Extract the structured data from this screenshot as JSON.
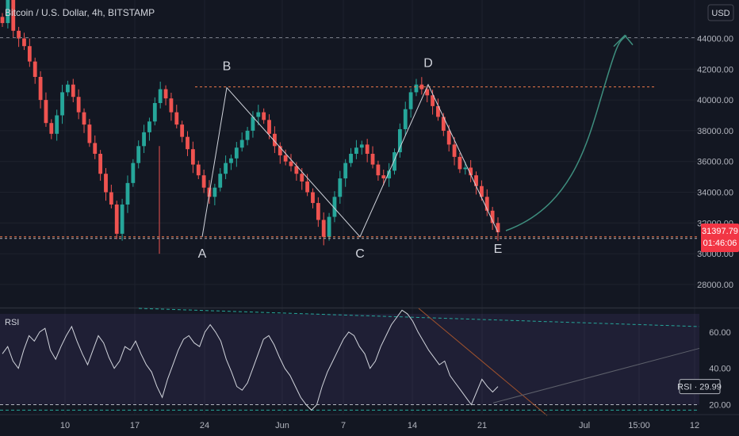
{
  "chart_data": [
    {
      "type": "candlestick",
      "title": "Bitcoin / U.S. Dollar, 4h, BITSTAMP",
      "currency": "USD",
      "last_price": "31397.79",
      "countdown": "01:46:06",
      "ylim": [
        26500,
        46500
      ],
      "y_ticks": [
        "44000.00",
        "42000.00",
        "40000.00",
        "38000.00",
        "36000.00",
        "34000.00",
        "32000.00",
        "30000.00",
        "28000.00"
      ],
      "y_tick_values": [
        44000,
        42000,
        40000,
        38000,
        36000,
        34000,
        32000,
        30000,
        28000
      ],
      "x_ticks": [
        "10",
        "17",
        "24",
        "Jun",
        "7",
        "14",
        "21",
        "Jul",
        "15:00",
        "12"
      ],
      "pattern_points": [
        {
          "label": "A",
          "value": 31100
        },
        {
          "label": "B",
          "value": 40800
        },
        {
          "label": "C",
          "value": 31100
        },
        {
          "label": "D",
          "value": 41000
        },
        {
          "label": "E",
          "value": 31400
        }
      ],
      "resistance_level": 40850,
      "support_level": 31100,
      "projection_target": 44200,
      "series": [
        {
          "values": [
            45000,
            47000,
            44500,
            44000,
            43500,
            42500,
            41500,
            40000,
            38500,
            37800,
            39000,
            40500,
            41000,
            40200,
            39200,
            38400,
            37200,
            36500,
            35200,
            34000,
            33200,
            31300,
            33200,
            34600,
            35900,
            37000,
            37900,
            38600,
            39800,
            40700,
            40100,
            39200,
            38400,
            37600,
            36800,
            35800,
            35100,
            34300,
            33700,
            34300,
            35200,
            35900,
            36200,
            36900,
            37400,
            38000,
            38900,
            39200,
            38700,
            37800,
            37000,
            36400,
            36000,
            35700,
            35200,
            34700,
            34000,
            33300,
            32200,
            31100,
            32400,
            33700,
            34900,
            35900,
            36500,
            36900,
            37100,
            36500,
            35800,
            35100,
            34900,
            35400,
            36600,
            38100,
            39400,
            40500,
            41000,
            40700,
            40300,
            39600,
            38900,
            38000,
            37100,
            36300,
            35500,
            35600,
            35100,
            34400,
            33700,
            32800,
            32000,
            31400
          ]
        }
      ]
    },
    {
      "type": "line",
      "title": "RSI",
      "rsi_value": "RSI · 29.99",
      "ylim": [
        15,
        73
      ],
      "y_ticks": [
        "60.00",
        "40.00",
        "20.00"
      ],
      "y_tick_values": [
        60,
        40,
        20
      ],
      "levels": [
        70,
        20
      ],
      "values": [
        48,
        52,
        44,
        40,
        50,
        58,
        55,
        60,
        62,
        50,
        45,
        52,
        58,
        63,
        55,
        48,
        42,
        50,
        58,
        54,
        46,
        40,
        44,
        52,
        50,
        55,
        48,
        42,
        38,
        30,
        24,
        34,
        42,
        50,
        56,
        58,
        54,
        52,
        60,
        64,
        60,
        55,
        45,
        38,
        30,
        28,
        32,
        40,
        48,
        56,
        58,
        53,
        46,
        40,
        36,
        30,
        24,
        20,
        17,
        20,
        30,
        38,
        44,
        50,
        56,
        60,
        58,
        52,
        48,
        40,
        44,
        52,
        58,
        64,
        68,
        72,
        70,
        66,
        60,
        55,
        50,
        46,
        42,
        44,
        36,
        32,
        28,
        24,
        20,
        27,
        34,
        30,
        27,
        30
      ]
    }
  ],
  "pane_separator": ""
}
